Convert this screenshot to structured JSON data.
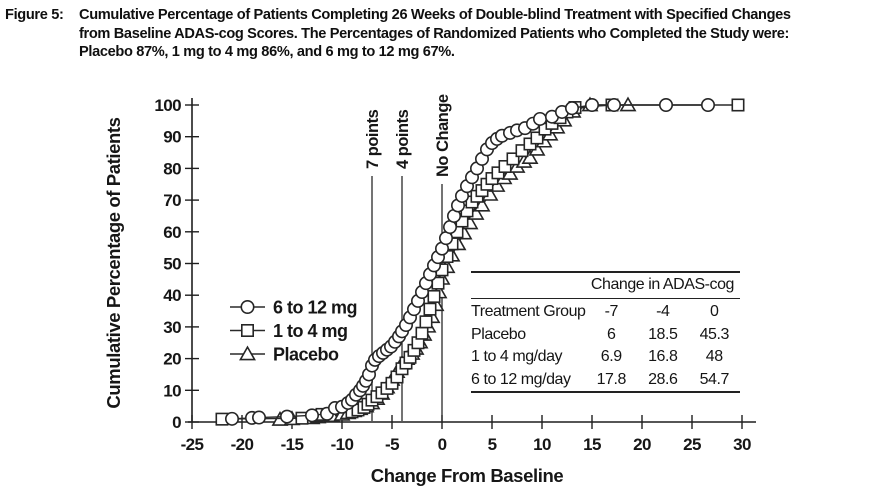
{
  "figure": {
    "label": "Figure 5:",
    "title_lines": [
      "Cumulative Percentage of Patients Completing 26 Weeks of Double-blind Treatment with Specified Changes",
      "from Baseline ADAS-cog Scores. The Percentages of Randomized Patients who Completed the Study were:",
      "Placebo 87%, 1 mg to 4 mg 86%, and 6 mg to 12 mg 67%."
    ]
  },
  "chart_data": {
    "type": "line",
    "title": "Cumulative Percentage of Patients Completing 26 Weeks of Double-blind Treatment with Specified Changes from Baseline ADAS-cog Scores",
    "xlabel": "Change From Baseline",
    "ylabel": "Cumulative Percentage of Patients",
    "xlim": [
      -27,
      31.5
    ],
    "ylim": [
      0,
      100
    ],
    "xticks": [
      -25,
      -20,
      -15,
      -10,
      -5,
      0,
      5,
      10,
      15,
      20,
      25,
      30
    ],
    "yticks": [
      0,
      10,
      20,
      30,
      40,
      50,
      60,
      70,
      80,
      90,
      100
    ],
    "grid": false,
    "legend_position": "inside-left-middle",
    "reference_lines": [
      {
        "x": -7,
        "label": "7 points"
      },
      {
        "x": -4,
        "label": "4 points"
      },
      {
        "x": 0,
        "label": "No Change"
      }
    ],
    "series": [
      {
        "name": "6 to 12 mg",
        "marker": "circle",
        "points": [
          [
            -21,
            1
          ],
          [
            -19,
            1.3
          ],
          [
            -18.3,
            1.4
          ],
          [
            -15.5,
            1.7
          ],
          [
            -13,
            2.1
          ],
          [
            -11.5,
            2.6
          ],
          [
            -10.7,
            4.4
          ],
          [
            -10,
            4.8
          ],
          [
            -9.4,
            6
          ],
          [
            -9,
            7
          ],
          [
            -8.6,
            8.6
          ],
          [
            -8.2,
            10
          ],
          [
            -7.9,
            11.4
          ],
          [
            -7.6,
            13
          ],
          [
            -7.3,
            15
          ],
          [
            -7,
            17.8
          ],
          [
            -6.7,
            19.6
          ],
          [
            -6.3,
            20.8
          ],
          [
            -5.9,
            21.8
          ],
          [
            -5.5,
            22.8
          ],
          [
            -5.1,
            23.8
          ],
          [
            -4.7,
            25.3
          ],
          [
            -4.3,
            27
          ],
          [
            -4,
            28.6
          ],
          [
            -3.6,
            30.6
          ],
          [
            -3.2,
            33
          ],
          [
            -2.8,
            35.6
          ],
          [
            -2.4,
            38.2
          ],
          [
            -2,
            41
          ],
          [
            -1.6,
            43.8
          ],
          [
            -1.2,
            46.6
          ],
          [
            -0.8,
            49.4
          ],
          [
            -0.4,
            52
          ],
          [
            0,
            54.7
          ],
          [
            0.4,
            58
          ],
          [
            0.8,
            61.5
          ],
          [
            1.2,
            65
          ],
          [
            1.6,
            68.3
          ],
          [
            2,
            71.3
          ],
          [
            2.5,
            74.4
          ],
          [
            3,
            77.2
          ],
          [
            3.5,
            80
          ],
          [
            4,
            83
          ],
          [
            4.5,
            86
          ],
          [
            5,
            88
          ],
          [
            5.5,
            89.3
          ],
          [
            6,
            90.3
          ],
          [
            6.8,
            91.2
          ],
          [
            7.5,
            92
          ],
          [
            8.3,
            92.7
          ],
          [
            9.1,
            94.1
          ],
          [
            9.8,
            95.6
          ],
          [
            11,
            96.3
          ],
          [
            12,
            97.8
          ],
          [
            13,
            99
          ],
          [
            15,
            100
          ],
          [
            17.2,
            100
          ],
          [
            22.4,
            100
          ],
          [
            26.6,
            100
          ]
        ]
      },
      {
        "name": "1 to 4 mg",
        "marker": "square",
        "points": [
          [
            -22,
            0.9
          ],
          [
            -14,
            1.2
          ],
          [
            -12.5,
            2
          ],
          [
            -12,
            2.4
          ],
          [
            -9,
            3.2
          ],
          [
            -8.4,
            3.8
          ],
          [
            -7.8,
            4.6
          ],
          [
            -7.4,
            5.6
          ],
          [
            -7,
            6.9
          ],
          [
            -6.5,
            8
          ],
          [
            -6,
            9.2
          ],
          [
            -5.5,
            10.6
          ],
          [
            -5,
            12.2
          ],
          [
            -4.5,
            14.2
          ],
          [
            -4,
            16.8
          ],
          [
            -3.6,
            18.6
          ],
          [
            -3.2,
            20.4
          ],
          [
            -2.8,
            22.6
          ],
          [
            -2.4,
            25
          ],
          [
            -2,
            28
          ],
          [
            -1.6,
            31.6
          ],
          [
            -1.2,
            35.6
          ],
          [
            -0.8,
            39.6
          ],
          [
            -0.4,
            43.8
          ],
          [
            0,
            48
          ],
          [
            0.5,
            52.2
          ],
          [
            1,
            56.2
          ],
          [
            1.5,
            60
          ],
          [
            2,
            63.4
          ],
          [
            2.5,
            66.6
          ],
          [
            3,
            69.4
          ],
          [
            3.5,
            71.2
          ],
          [
            4,
            73
          ],
          [
            4.5,
            75
          ],
          [
            5,
            76.8
          ],
          [
            5.6,
            78.6
          ],
          [
            6.3,
            80.6
          ],
          [
            7.1,
            83
          ],
          [
            8,
            85.6
          ],
          [
            8.8,
            87.7
          ],
          [
            9.5,
            89.6
          ],
          [
            10.3,
            92.4
          ],
          [
            11,
            94.2
          ],
          [
            11.8,
            96
          ],
          [
            12.5,
            97.8
          ],
          [
            13.3,
            99.2
          ],
          [
            17,
            100
          ],
          [
            29.6,
            100
          ]
        ]
      },
      {
        "name": "Placebo",
        "marker": "triangle",
        "points": [
          [
            -16.2,
            0.8
          ],
          [
            -15,
            1
          ],
          [
            -13,
            1.3
          ],
          [
            -12.4,
            1.6
          ],
          [
            -11,
            2
          ],
          [
            -10,
            2.4
          ],
          [
            -9.4,
            2.9
          ],
          [
            -8.8,
            3.5
          ],
          [
            -8.2,
            4.2
          ],
          [
            -7.6,
            5
          ],
          [
            -7,
            6
          ],
          [
            -6.5,
            7.4
          ],
          [
            -6,
            9
          ],
          [
            -5.5,
            11
          ],
          [
            -5,
            13.4
          ],
          [
            -4.5,
            15.9
          ],
          [
            -4,
            18.5
          ],
          [
            -3.5,
            20
          ],
          [
            -3,
            21.6
          ],
          [
            -2.6,
            23.2
          ],
          [
            -2.2,
            25.2
          ],
          [
            -1.8,
            27.6
          ],
          [
            -1.4,
            30.2
          ],
          [
            -1,
            33.2
          ],
          [
            -0.6,
            37
          ],
          [
            -0.3,
            41
          ],
          [
            0,
            45.3
          ],
          [
            0.5,
            49
          ],
          [
            1,
            52.6
          ],
          [
            1.6,
            56.2
          ],
          [
            2.2,
            59.6
          ],
          [
            2.8,
            62.8
          ],
          [
            3.4,
            65.8
          ],
          [
            4,
            68.4
          ],
          [
            4.8,
            71.8
          ],
          [
            5.5,
            74.6
          ],
          [
            6.2,
            77
          ],
          [
            6.8,
            78.4
          ],
          [
            7.5,
            80.6
          ],
          [
            8.2,
            82.2
          ],
          [
            8.8,
            83.4
          ],
          [
            9.5,
            86
          ],
          [
            10.2,
            88.6
          ],
          [
            10.8,
            90.8
          ],
          [
            11.5,
            93
          ],
          [
            12.2,
            95.2
          ],
          [
            13.1,
            98
          ],
          [
            14.8,
            100
          ],
          [
            18.6,
            100
          ]
        ]
      }
    ]
  },
  "inset_table": {
    "title": "Change in ADAS-cog",
    "columns": [
      "Treatment Group",
      "-7",
      "-4",
      "0"
    ],
    "rows": [
      [
        "Placebo",
        "6",
        "18.5",
        "45.3"
      ],
      [
        "1 to 4 mg/day",
        "6.9",
        "16.8",
        "48"
      ],
      [
        "6 to 12 mg/day",
        "17.8",
        "28.6",
        "54.7"
      ]
    ]
  },
  "colors": {
    "ink": "#161616",
    "background": "#ffffff"
  }
}
